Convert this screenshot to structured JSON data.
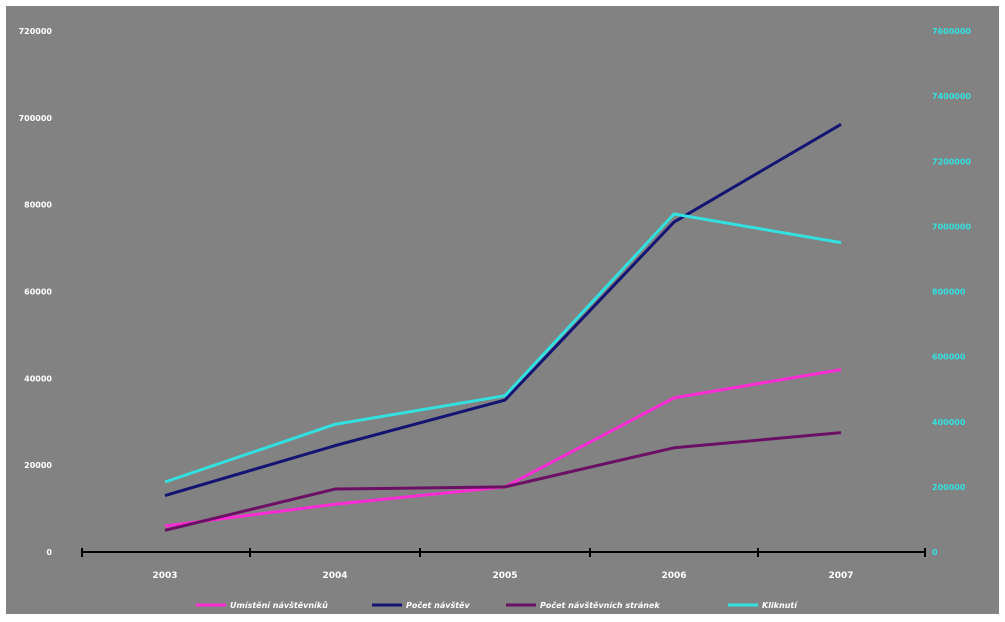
{
  "chart_data": {
    "type": "line",
    "title": "",
    "xlabel": "",
    "ylabel": "",
    "categories": [
      "2003",
      "2004",
      "2005",
      "2006",
      "2007"
    ],
    "ylim_left": [
      0,
      720000
    ],
    "yticks_left": [
      "0",
      "20000",
      "40000",
      "60000",
      "80000",
      "700000",
      "720000"
    ],
    "ylim_right": [
      0,
      7600000
    ],
    "yticks_right": [
      "0",
      "200000",
      "400000",
      "600000",
      "800000",
      "7000000",
      "7200000",
      "7400000",
      "7600000"
    ],
    "grid": false,
    "legend_position": "bottom",
    "series": [
      {
        "name": "Umístění návštěvníků",
        "color": "#ff2bd5",
        "axis": "left",
        "values": [
          6000,
          11000,
          15000,
          35500,
          42000
        ]
      },
      {
        "name": "Počet návštěv",
        "color": "#141473",
        "axis": "left",
        "values": [
          13000,
          24500,
          35000,
          76000,
          98500
        ]
      },
      {
        "name": "Počet návštěvních stránek",
        "color": "#6b1064",
        "axis": "left",
        "values": [
          5000,
          14500,
          15000,
          24000,
          27500
        ]
      },
      {
        "name": "Kliknutí",
        "color": "#33e0e0",
        "axis": "right",
        "values": [
          215000,
          392000,
          480000,
          1038000,
          950000
        ]
      }
    ]
  },
  "colors": {
    "plot_background": "#828282",
    "axis": "#000000",
    "left_tick_text": "#ffffff",
    "right_tick_text": "#33e0e0",
    "category_text": "#ffffff",
    "legend_text": "#ffffff"
  }
}
